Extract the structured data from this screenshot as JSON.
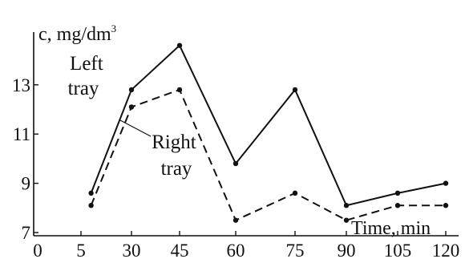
{
  "chart_data": {
    "type": "line",
    "x": [
      10,
      30,
      45,
      60,
      75,
      90,
      105,
      120
    ],
    "x_ticks": [
      0,
      5,
      30,
      45,
      60,
      75,
      90,
      105,
      120
    ],
    "y_ticks": [
      7,
      9,
      11,
      13
    ],
    "xlabel": "Time, min",
    "ylabel": "c, mg/dm",
    "ylabel_superscript": "3",
    "ylim": [
      6.6,
      15.3
    ],
    "series": [
      {
        "name": "Left tray",
        "style": "solid",
        "values": [
          8.6,
          12.8,
          14.6,
          9.8,
          12.8,
          8.1,
          8.6,
          9.0
        ]
      },
      {
        "name": "Right tray",
        "style": "dashed",
        "values": [
          8.1,
          12.1,
          12.8,
          7.5,
          8.6,
          7.5,
          8.1,
          8.1
        ]
      }
    ],
    "annotations": [
      {
        "series": "Left tray",
        "lines": [
          "Left",
          "tray"
        ]
      },
      {
        "series": "Right tray",
        "lines": [
          "Right",
          "tray"
        ]
      }
    ],
    "colors": {
      "line": "#111111",
      "background": "#ffffff"
    }
  }
}
